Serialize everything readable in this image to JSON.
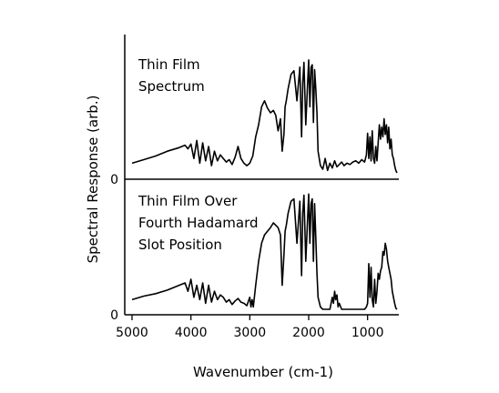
{
  "chart_data": {
    "type": "line",
    "xlabel": "Wavenumber (cm-1)",
    "ylabel": "Spectral Response (arb.)",
    "xlim": [
      5000,
      500
    ],
    "x_reversed": true,
    "x_ticks": [
      5000,
      4000,
      3000,
      2000,
      1000
    ],
    "x_tick_labels": [
      "5000",
      "4000",
      "3000",
      "2000",
      "1000"
    ],
    "y_zero_label": "0",
    "grid": false,
    "panels": [
      {
        "name": "top",
        "annotation": [
          "Thin Film",
          "Spectrum"
        ],
        "ylim": [
          0,
          1.0
        ],
        "x": [
          5000,
          4800,
          4600,
          4400,
          4200,
          4100,
          4050,
          4000,
          3950,
          3900,
          3850,
          3800,
          3750,
          3700,
          3650,
          3600,
          3550,
          3500,
          3450,
          3400,
          3350,
          3300,
          3250,
          3200,
          3150,
          3100,
          3050,
          3000,
          2950,
          2900,
          2850,
          2800,
          2750,
          2700,
          2650,
          2600,
          2560,
          2520,
          2480,
          2450,
          2420,
          2400,
          2380,
          2350,
          2300,
          2250,
          2200,
          2150,
          2120,
          2100,
          2080,
          2050,
          2000,
          1980,
          1960,
          1940,
          1920,
          1900,
          1880,
          1860,
          1840,
          1800,
          1760,
          1720,
          1680,
          1640,
          1600,
          1560,
          1520,
          1480,
          1440,
          1400,
          1350,
          1300,
          1250,
          1200,
          1150,
          1100,
          1050,
          1020,
          1000,
          980,
          960,
          940,
          920,
          900,
          880,
          860,
          840,
          820,
          800,
          780,
          760,
          740,
          720,
          700,
          680,
          660,
          640,
          620,
          600,
          580,
          560,
          540,
          520,
          500
        ],
        "y": [
          0.08,
          0.11,
          0.14,
          0.18,
          0.21,
          0.23,
          0.2,
          0.24,
          0.12,
          0.27,
          0.08,
          0.25,
          0.1,
          0.22,
          0.06,
          0.18,
          0.1,
          0.15,
          0.12,
          0.09,
          0.11,
          0.07,
          0.13,
          0.22,
          0.12,
          0.08,
          0.06,
          0.08,
          0.14,
          0.3,
          0.4,
          0.55,
          0.6,
          0.54,
          0.5,
          0.52,
          0.48,
          0.35,
          0.45,
          0.18,
          0.32,
          0.55,
          0.6,
          0.7,
          0.82,
          0.85,
          0.6,
          0.88,
          0.3,
          0.75,
          0.92,
          0.4,
          0.94,
          0.55,
          0.88,
          0.9,
          0.42,
          0.86,
          0.7,
          0.5,
          0.18,
          0.06,
          0.03,
          0.12,
          0.02,
          0.08,
          0.04,
          0.1,
          0.05,
          0.07,
          0.09,
          0.06,
          0.08,
          0.07,
          0.09,
          0.1,
          0.08,
          0.11,
          0.09,
          0.15,
          0.33,
          0.12,
          0.3,
          0.1,
          0.35,
          0.12,
          0.08,
          0.22,
          0.1,
          0.25,
          0.4,
          0.28,
          0.38,
          0.3,
          0.45,
          0.32,
          0.4,
          0.25,
          0.38,
          0.2,
          0.28,
          0.15,
          0.12,
          0.06,
          0.02,
          0.0
        ]
      },
      {
        "name": "bottom",
        "annotation": [
          "Thin Film Over",
          "Fourth Hadamard",
          "Slot Position"
        ],
        "ylim": [
          0,
          1.0
        ],
        "x": [
          5000,
          4800,
          4600,
          4400,
          4200,
          4100,
          4050,
          4000,
          3950,
          3900,
          3850,
          3800,
          3750,
          3700,
          3650,
          3600,
          3550,
          3500,
          3450,
          3400,
          3350,
          3300,
          3250,
          3200,
          3150,
          3100,
          3050,
          3000,
          2980,
          2960,
          2940,
          2900,
          2850,
          2800,
          2750,
          2700,
          2650,
          2600,
          2560,
          2520,
          2480,
          2450,
          2420,
          2400,
          2380,
          2350,
          2300,
          2250,
          2200,
          2150,
          2120,
          2100,
          2080,
          2050,
          2000,
          1980,
          1960,
          1940,
          1920,
          1900,
          1880,
          1860,
          1840,
          1800,
          1760,
          1720,
          1680,
          1640,
          1600,
          1580,
          1560,
          1540,
          1520,
          1500,
          1480,
          1440,
          1400,
          1350,
          1300,
          1250,
          1200,
          1150,
          1100,
          1050,
          1020,
          1000,
          980,
          960,
          940,
          920,
          900,
          880,
          860,
          840,
          820,
          800,
          780,
          760,
          740,
          720,
          700,
          680,
          660,
          640,
          620,
          600,
          580,
          560,
          540,
          520,
          500
        ],
        "y": [
          0.08,
          0.11,
          0.13,
          0.16,
          0.2,
          0.22,
          0.15,
          0.25,
          0.1,
          0.2,
          0.08,
          0.22,
          0.05,
          0.2,
          0.06,
          0.15,
          0.08,
          0.12,
          0.1,
          0.06,
          0.08,
          0.04,
          0.07,
          0.09,
          0.06,
          0.05,
          0.03,
          0.1,
          0.02,
          0.08,
          0.02,
          0.2,
          0.4,
          0.55,
          0.62,
          0.65,
          0.68,
          0.72,
          0.7,
          0.68,
          0.62,
          0.2,
          0.45,
          0.65,
          0.7,
          0.8,
          0.9,
          0.92,
          0.55,
          0.9,
          0.28,
          0.8,
          0.95,
          0.4,
          0.96,
          0.55,
          0.88,
          0.92,
          0.4,
          0.88,
          0.6,
          0.3,
          0.1,
          0.02,
          0.0,
          0.0,
          0.0,
          0.0,
          0.1,
          0.05,
          0.15,
          0.08,
          0.12,
          0.02,
          0.05,
          0.0,
          0.0,
          0.0,
          0.0,
          0.0,
          0.0,
          0.0,
          0.0,
          0.0,
          0.02,
          0.05,
          0.38,
          0.1,
          0.35,
          0.08,
          0.02,
          0.25,
          0.05,
          0.15,
          0.3,
          0.25,
          0.32,
          0.35,
          0.48,
          0.45,
          0.55,
          0.5,
          0.4,
          0.35,
          0.3,
          0.25,
          0.15,
          0.1,
          0.05,
          0.01,
          0.0
        ]
      }
    ]
  }
}
